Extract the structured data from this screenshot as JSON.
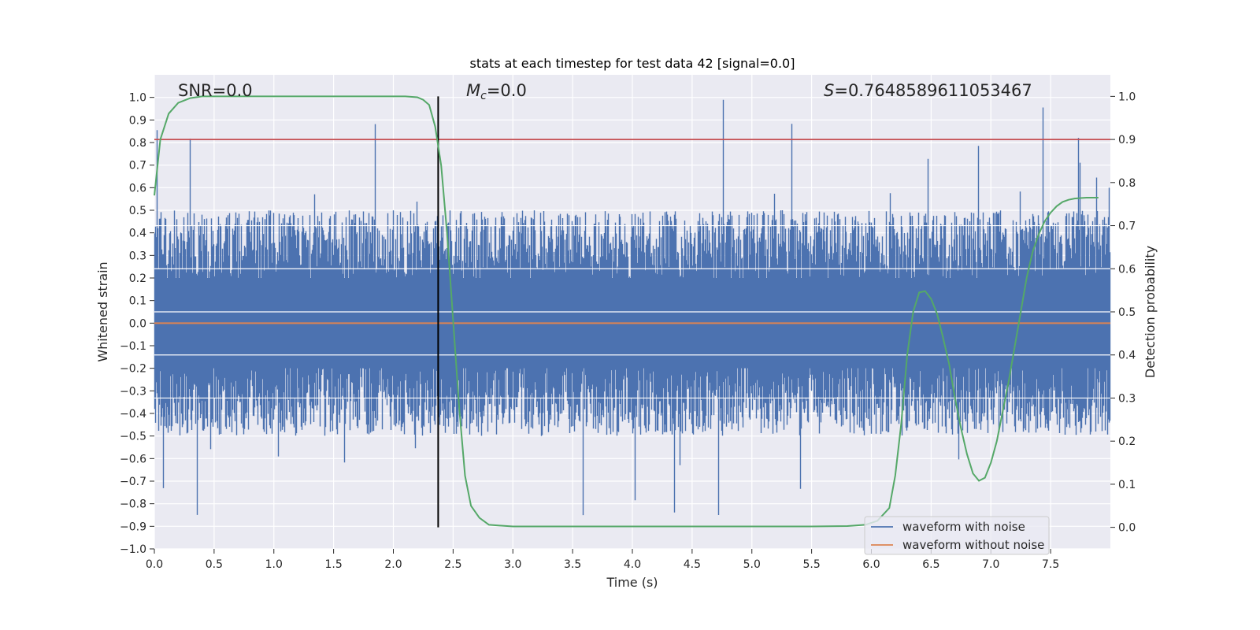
{
  "chart_data": {
    "type": "line",
    "title": "stats at each timestep for test data 42 [signal=0.0]",
    "xlabel": "Time (s)",
    "ylabel": "Whitened strain",
    "y2label": "Detection probability",
    "xlim": [
      0.0,
      8.0
    ],
    "ylim": [
      -1.0,
      1.1
    ],
    "y2lim": [
      -0.05,
      1.05
    ],
    "xticks": [
      "0.0",
      "0.5",
      "1.0",
      "1.5",
      "2.0",
      "2.5",
      "3.0",
      "3.5",
      "4.0",
      "4.5",
      "5.0",
      "5.5",
      "6.0",
      "6.5",
      "7.0",
      "7.5"
    ],
    "yticks": [
      "-1.0",
      "-0.9",
      "-0.8",
      "-0.7",
      "-0.6",
      "-0.5",
      "-0.4",
      "-0.3",
      "-0.2",
      "-0.1",
      "0.0",
      "0.1",
      "0.2",
      "0.3",
      "0.4",
      "0.5",
      "0.6",
      "0.7",
      "0.8",
      "0.9",
      "1.0"
    ],
    "y2ticks": [
      "0.0",
      "0.1",
      "0.2",
      "0.3",
      "0.4",
      "0.5",
      "0.6",
      "0.7",
      "0.8",
      "0.9",
      "1.0"
    ],
    "grid": true,
    "legend_position": "lower-right",
    "annotations": {
      "snr_prefix": "SNR=",
      "snr_value": "0.0",
      "mc_symbol": "M",
      "mc_subscript": "c",
      "mc_value": "=0.0",
      "s_symbol": "S",
      "s_value": "=0.7648589611053467"
    },
    "markers": {
      "vertical_line_x": 2.375,
      "vertical_line_ymin": 0.0,
      "vertical_line_ymax": 1.0,
      "threshold_y2": 0.9
    },
    "series": [
      {
        "name": "waveform with noise",
        "color": "#4c72b0",
        "style": "noise",
        "approx_envelope": {
          "upper_typical": 0.5,
          "upper_peak": 1.0,
          "lower_typical": -0.5,
          "lower_peak": -0.9
        }
      },
      {
        "name": "waveform without noise",
        "color": "#dd8452",
        "y": 0.0
      },
      {
        "name": "",
        "color": "#55a868",
        "axis": "right",
        "x": [
          0.0,
          0.05,
          0.12,
          0.2,
          0.3,
          0.4,
          0.6,
          1.0,
          1.5,
          2.0,
          2.1,
          2.2,
          2.25,
          2.3,
          2.35,
          2.4,
          2.45,
          2.5,
          2.55,
          2.6,
          2.65,
          2.72,
          2.8,
          3.0,
          4.0,
          5.0,
          5.5,
          5.8,
          5.95,
          6.05,
          6.15,
          6.2,
          6.25,
          6.3,
          6.35,
          6.4,
          6.45,
          6.5,
          6.55,
          6.6,
          6.65,
          6.7,
          6.75,
          6.8,
          6.85,
          6.9,
          6.95,
          7.0,
          7.05,
          7.1,
          7.15,
          7.2,
          7.25,
          7.3,
          7.35,
          7.4,
          7.45,
          7.5,
          7.55,
          7.6,
          7.65,
          7.7,
          7.75,
          7.8,
          7.9
        ],
        "y": [
          0.77,
          0.9,
          0.96,
          0.985,
          0.996,
          1.0,
          1.0,
          1.0,
          1.0,
          1.0,
          1.0,
          0.998,
          0.992,
          0.98,
          0.93,
          0.84,
          0.68,
          0.48,
          0.28,
          0.12,
          0.05,
          0.022,
          0.006,
          0.002,
          0.002,
          0.002,
          0.002,
          0.003,
          0.006,
          0.015,
          0.045,
          0.12,
          0.24,
          0.4,
          0.5,
          0.545,
          0.548,
          0.53,
          0.495,
          0.44,
          0.38,
          0.3,
          0.23,
          0.17,
          0.125,
          0.108,
          0.115,
          0.15,
          0.2,
          0.27,
          0.34,
          0.42,
          0.5,
          0.58,
          0.64,
          0.68,
          0.71,
          0.73,
          0.745,
          0.755,
          0.76,
          0.763,
          0.764,
          0.765,
          0.765
        ]
      }
    ]
  }
}
